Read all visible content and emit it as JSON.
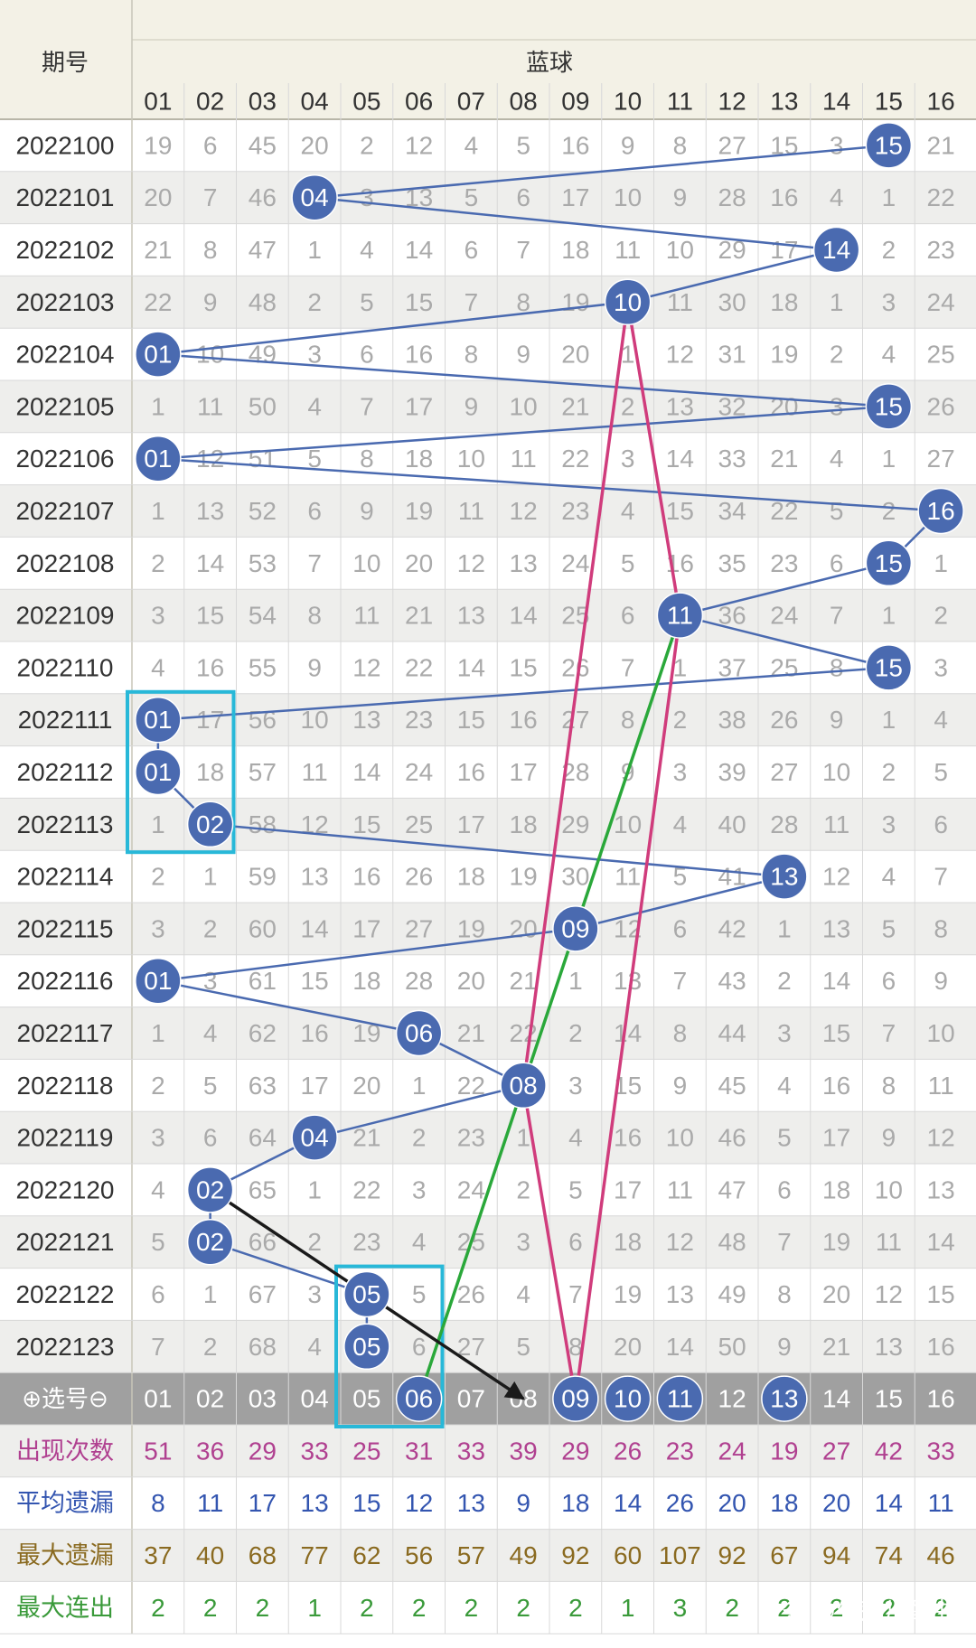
{
  "header": {
    "period_title": "期号",
    "group_title": "蓝球",
    "columns": [
      "01",
      "02",
      "03",
      "04",
      "05",
      "06",
      "07",
      "08",
      "09",
      "10",
      "11",
      "12",
      "13",
      "14",
      "15",
      "16"
    ]
  },
  "chart_data": {
    "type": "table",
    "rows": [
      {
        "period": "2022100",
        "cells": [
          19,
          6,
          45,
          20,
          2,
          12,
          4,
          5,
          16,
          9,
          8,
          27,
          15,
          3,
          "15",
          21
        ]
      },
      {
        "period": "2022101",
        "cells": [
          20,
          7,
          46,
          "04",
          3,
          13,
          5,
          6,
          17,
          10,
          9,
          28,
          16,
          4,
          1,
          22
        ]
      },
      {
        "period": "2022102",
        "cells": [
          21,
          8,
          47,
          1,
          4,
          14,
          6,
          7,
          18,
          11,
          10,
          29,
          17,
          "14",
          2,
          23
        ]
      },
      {
        "period": "2022103",
        "cells": [
          22,
          9,
          48,
          2,
          5,
          15,
          7,
          8,
          19,
          "10",
          11,
          30,
          18,
          1,
          3,
          24
        ]
      },
      {
        "period": "2022104",
        "cells": [
          "01",
          10,
          49,
          3,
          6,
          16,
          8,
          9,
          20,
          1,
          12,
          31,
          19,
          2,
          4,
          25
        ]
      },
      {
        "period": "2022105",
        "cells": [
          1,
          11,
          50,
          4,
          7,
          17,
          9,
          10,
          21,
          2,
          13,
          32,
          20,
          3,
          "15",
          26
        ]
      },
      {
        "period": "2022106",
        "cells": [
          "01",
          12,
          51,
          5,
          8,
          18,
          10,
          11,
          22,
          3,
          14,
          33,
          21,
          4,
          1,
          27
        ]
      },
      {
        "period": "2022107",
        "cells": [
          1,
          13,
          52,
          6,
          9,
          19,
          11,
          12,
          23,
          4,
          15,
          34,
          22,
          5,
          2,
          "16"
        ]
      },
      {
        "period": "2022108",
        "cells": [
          2,
          14,
          53,
          7,
          10,
          20,
          12,
          13,
          24,
          5,
          16,
          35,
          23,
          6,
          "15",
          1
        ]
      },
      {
        "period": "2022109",
        "cells": [
          3,
          15,
          54,
          8,
          11,
          21,
          13,
          14,
          25,
          6,
          "11",
          36,
          24,
          7,
          1,
          2
        ]
      },
      {
        "period": "2022110",
        "cells": [
          4,
          16,
          55,
          9,
          12,
          22,
          14,
          15,
          26,
          7,
          1,
          37,
          25,
          8,
          "15",
          3
        ]
      },
      {
        "period": "2022111",
        "cells": [
          "01",
          17,
          56,
          10,
          13,
          23,
          15,
          16,
          27,
          8,
          2,
          38,
          26,
          9,
          1,
          4
        ]
      },
      {
        "period": "2022112",
        "cells": [
          "01",
          18,
          57,
          11,
          14,
          24,
          16,
          17,
          28,
          9,
          3,
          39,
          27,
          10,
          2,
          5
        ]
      },
      {
        "period": "2022113",
        "cells": [
          1,
          "02",
          58,
          12,
          15,
          25,
          17,
          18,
          29,
          10,
          4,
          40,
          28,
          11,
          3,
          6
        ]
      },
      {
        "period": "2022114",
        "cells": [
          2,
          1,
          59,
          13,
          16,
          26,
          18,
          19,
          30,
          11,
          5,
          41,
          "13",
          12,
          4,
          7
        ]
      },
      {
        "period": "2022115",
        "cells": [
          3,
          2,
          60,
          14,
          17,
          27,
          19,
          20,
          "09",
          12,
          6,
          42,
          1,
          13,
          5,
          8
        ]
      },
      {
        "period": "2022116",
        "cells": [
          "01",
          3,
          61,
          15,
          18,
          28,
          20,
          21,
          1,
          13,
          7,
          43,
          2,
          14,
          6,
          9
        ]
      },
      {
        "period": "2022117",
        "cells": [
          1,
          4,
          62,
          16,
          19,
          "06",
          21,
          22,
          2,
          14,
          8,
          44,
          3,
          15,
          7,
          10
        ]
      },
      {
        "period": "2022118",
        "cells": [
          2,
          5,
          63,
          17,
          20,
          1,
          22,
          "08",
          3,
          15,
          9,
          45,
          4,
          16,
          8,
          11
        ]
      },
      {
        "period": "2022119",
        "cells": [
          3,
          6,
          64,
          "04",
          21,
          2,
          23,
          1,
          4,
          16,
          10,
          46,
          5,
          17,
          9,
          12
        ]
      },
      {
        "period": "2022120",
        "cells": [
          4,
          "02",
          65,
          1,
          22,
          3,
          24,
          2,
          5,
          17,
          11,
          47,
          6,
          18,
          10,
          13
        ]
      },
      {
        "period": "2022121",
        "cells": [
          5,
          "02",
          66,
          2,
          23,
          4,
          25,
          3,
          6,
          18,
          12,
          48,
          7,
          19,
          11,
          14
        ]
      },
      {
        "period": "2022122",
        "cells": [
          6,
          1,
          67,
          3,
          "05",
          5,
          26,
          4,
          7,
          19,
          13,
          49,
          8,
          20,
          12,
          15
        ]
      },
      {
        "period": "2022123",
        "cells": [
          7,
          2,
          68,
          4,
          "05",
          6,
          27,
          5,
          8,
          20,
          14,
          50,
          9,
          21,
          13,
          16
        ]
      }
    ],
    "select_row": {
      "label": "⊕选号⊖",
      "cells": [
        "01",
        "02",
        "03",
        "04",
        "05",
        "06",
        "07",
        "08",
        "09",
        "10",
        "11",
        "12",
        "13",
        "14",
        "15",
        "16"
      ],
      "selected": [
        "06",
        "09",
        "10",
        "11",
        "13"
      ]
    },
    "stats": [
      {
        "label": "出现次数",
        "color": "#b04090",
        "values": [
          51,
          36,
          29,
          33,
          25,
          31,
          33,
          39,
          29,
          26,
          23,
          24,
          19,
          27,
          42,
          33
        ]
      },
      {
        "label": "平均遗漏",
        "color": "#3355b0",
        "values": [
          8,
          11,
          17,
          13,
          15,
          12,
          13,
          9,
          18,
          14,
          26,
          20,
          18,
          20,
          14,
          11
        ]
      },
      {
        "label": "最大遗漏",
        "color": "#8a6a20",
        "values": [
          37,
          40,
          68,
          77,
          62,
          56,
          57,
          49,
          92,
          60,
          107,
          92,
          67,
          94,
          74,
          46
        ]
      },
      {
        "label": "最大连出",
        "color": "#3a9a3a",
        "values": [
          2,
          2,
          2,
          1,
          2,
          2,
          2,
          2,
          2,
          1,
          3,
          2,
          2,
          2,
          2,
          2
        ]
      }
    ],
    "annotations": {
      "boxes": [
        {
          "col_from": 1,
          "col_to": 1,
          "row_from": "2022111",
          "row_to": "2022113",
          "color": "#28b8d8"
        },
        {
          "col_from": 5,
          "col_to": 5,
          "row_from": "2022122",
          "row_to": "select",
          "color": "#28b8d8"
        }
      ],
      "arrows": [
        {
          "color": "#d03c7c",
          "from": {
            "row": "2022103",
            "col": 10
          },
          "to": {
            "row": "2022118",
            "col": 8
          }
        },
        {
          "color": "#d03c7c",
          "from": {
            "row": "2022103",
            "col": 10
          },
          "via": {
            "row": "2022109",
            "col": 11
          },
          "to": {
            "row": "select",
            "col": 9
          }
        },
        {
          "color": "#d03c7c",
          "from": {
            "row": "2022118",
            "col": 8
          },
          "to": {
            "row": "select",
            "col": 9
          }
        },
        {
          "color": "#2aa83a",
          "from": {
            "row": "2022109",
            "col": 11
          },
          "to": {
            "row": "select",
            "col": 6
          }
        },
        {
          "color": "#1a1a1a",
          "from": {
            "row": "2022120",
            "col": 2
          },
          "to": {
            "row": "select",
            "col": 8
          }
        }
      ]
    }
  },
  "colors": {
    "ball": "#4a6ab0",
    "trend_line": "#4a6ab0",
    "header_bg": "#f3f1e6",
    "row_alt_bg": "#eeeeec",
    "select_row_bg": "#a0a0a0",
    "grid": "#d8d8d8",
    "miss_text": "#aaaaaa"
  },
  "watermark": "头条 @牛范儿酷牛"
}
